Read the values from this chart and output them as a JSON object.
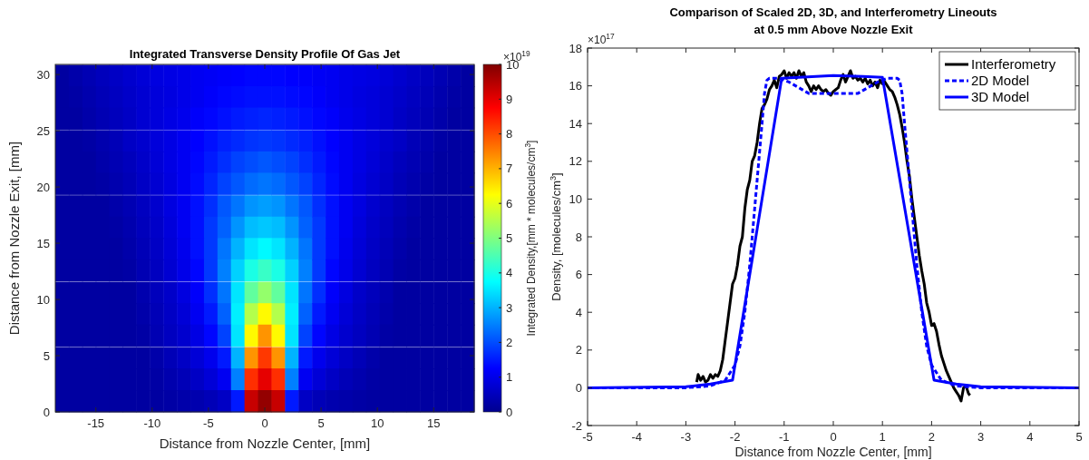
{
  "chart_data": [
    {
      "type": "heatmap",
      "title": "Integrated Transverse Density Profile Of Gas Jet",
      "xlabel": "Distance from Nozzle Center, [mm]",
      "ylabel": "Distance from Nozzle Exit, [mm]",
      "clabel": "Integrated Density,[mm * molecules/cm$^{3}$]",
      "annotations": [
        "×10$^{19}$"
      ],
      "x": [
        -18.0,
        -16.8,
        -15.6,
        -14.4,
        -13.2,
        -12.0,
        -10.8,
        -9.6,
        -8.4,
        -7.2,
        -6.0,
        -4.8,
        -3.6,
        -2.4,
        -1.2,
        0,
        1.2,
        2.4,
        3.6,
        4.8,
        6.0,
        7.2,
        8.4,
        9.6,
        10.8,
        12.0,
        13.2,
        14.4,
        15.6,
        16.8,
        18.0
      ],
      "y": [
        29.9,
        28.0,
        26.1,
        24.1,
        22.2,
        20.3,
        18.3,
        16.4,
        14.5,
        12.6,
        10.6,
        8.7,
        6.8,
        4.8,
        2.9,
        0.97
      ],
      "xlim": [
        -18.6,
        18.6
      ],
      "ylim": [
        0,
        30.9
      ],
      "xticks": [
        -15,
        -10,
        -5,
        0,
        5,
        10,
        15
      ],
      "yticks": [
        0,
        5,
        10,
        15,
        20,
        25,
        30
      ],
      "clim": [
        0,
        10
      ],
      "cticks": [
        0,
        1,
        2,
        3,
        4,
        5,
        6,
        7,
        8,
        9,
        10
      ],
      "cells": [
        [
          0.2,
          0.3,
          0.4,
          0.5,
          0.6,
          0.7,
          0.8,
          0.9,
          0.95,
          1.0,
          1.1,
          1.15,
          1.2,
          1.25,
          1.3,
          1.3,
          1.3,
          1.25,
          1.2,
          1.15,
          1.1,
          1.0,
          0.95,
          0.9,
          0.8,
          0.7,
          0.6,
          0.5,
          0.4,
          0.3,
          0.2
        ],
        [
          0.2,
          0.25,
          0.35,
          0.45,
          0.55,
          0.65,
          0.75,
          0.85,
          0.9,
          1.0,
          1.1,
          1.2,
          1.3,
          1.35,
          1.4,
          1.4,
          1.4,
          1.35,
          1.3,
          1.2,
          1.1,
          1.0,
          0.9,
          0.85,
          0.75,
          0.65,
          0.55,
          0.45,
          0.35,
          0.25,
          0.2
        ],
        [
          0.2,
          0.2,
          0.3,
          0.4,
          0.5,
          0.6,
          0.75,
          0.85,
          0.95,
          1.05,
          1.2,
          1.3,
          1.4,
          1.5,
          1.55,
          1.6,
          1.55,
          1.5,
          1.4,
          1.3,
          1.2,
          1.05,
          0.95,
          0.85,
          0.75,
          0.6,
          0.5,
          0.4,
          0.3,
          0.2,
          0.2
        ],
        [
          0.2,
          0.2,
          0.25,
          0.35,
          0.45,
          0.6,
          0.7,
          0.85,
          0.95,
          1.1,
          1.25,
          1.4,
          1.55,
          1.65,
          1.75,
          1.8,
          1.75,
          1.65,
          1.55,
          1.4,
          1.25,
          1.1,
          0.95,
          0.85,
          0.7,
          0.6,
          0.45,
          0.35,
          0.25,
          0.2,
          0.2
        ],
        [
          0.2,
          0.2,
          0.2,
          0.3,
          0.4,
          0.5,
          0.65,
          0.8,
          0.95,
          1.1,
          1.3,
          1.5,
          1.7,
          1.9,
          2.0,
          2.1,
          2.0,
          1.9,
          1.7,
          1.5,
          1.3,
          1.1,
          0.95,
          0.8,
          0.65,
          0.5,
          0.4,
          0.3,
          0.2,
          0.2,
          0.2
        ],
        [
          0.2,
          0.2,
          0.2,
          0.25,
          0.35,
          0.45,
          0.6,
          0.75,
          0.9,
          1.1,
          1.35,
          1.6,
          1.9,
          2.1,
          2.3,
          2.4,
          2.3,
          2.1,
          1.9,
          1.6,
          1.35,
          1.1,
          0.9,
          0.75,
          0.6,
          0.45,
          0.35,
          0.25,
          0.2,
          0.2,
          0.2
        ],
        [
          0.2,
          0.2,
          0.2,
          0.2,
          0.3,
          0.4,
          0.55,
          0.7,
          0.9,
          1.1,
          1.4,
          1.7,
          2.1,
          2.4,
          2.7,
          2.8,
          2.7,
          2.4,
          2.1,
          1.7,
          1.4,
          1.1,
          0.9,
          0.7,
          0.55,
          0.4,
          0.3,
          0.2,
          0.2,
          0.2,
          0.2
        ],
        [
          0.2,
          0.2,
          0.2,
          0.2,
          0.25,
          0.35,
          0.5,
          0.65,
          0.85,
          1.1,
          1.4,
          1.8,
          2.2,
          2.7,
          3.1,
          3.2,
          3.1,
          2.7,
          2.2,
          1.8,
          1.4,
          1.1,
          0.85,
          0.65,
          0.5,
          0.35,
          0.25,
          0.2,
          0.2,
          0.2,
          0.2
        ],
        [
          0.2,
          0.2,
          0.2,
          0.2,
          0.2,
          0.3,
          0.45,
          0.6,
          0.8,
          1.05,
          1.4,
          1.8,
          2.4,
          3.0,
          3.5,
          3.7,
          3.5,
          3.0,
          2.4,
          1.8,
          1.4,
          1.05,
          0.8,
          0.6,
          0.45,
          0.3,
          0.2,
          0.2,
          0.2,
          0.2,
          0.2
        ],
        [
          0.2,
          0.2,
          0.2,
          0.2,
          0.2,
          0.25,
          0.4,
          0.55,
          0.75,
          1.0,
          1.3,
          1.8,
          2.5,
          3.3,
          4.0,
          4.3,
          4.0,
          3.3,
          2.5,
          1.8,
          1.3,
          1.0,
          0.75,
          0.55,
          0.4,
          0.25,
          0.2,
          0.2,
          0.2,
          0.2,
          0.2
        ],
        [
          0.2,
          0.2,
          0.2,
          0.2,
          0.2,
          0.2,
          0.35,
          0.5,
          0.65,
          0.9,
          1.2,
          1.7,
          2.4,
          3.5,
          4.7,
          5.2,
          4.7,
          3.5,
          2.4,
          1.7,
          1.2,
          0.9,
          0.65,
          0.5,
          0.35,
          0.2,
          0.2,
          0.2,
          0.2,
          0.2,
          0.2
        ],
        [
          0.2,
          0.2,
          0.2,
          0.2,
          0.2,
          0.2,
          0.3,
          0.45,
          0.6,
          0.8,
          1.1,
          1.5,
          2.2,
          3.6,
          5.5,
          6.3,
          5.5,
          3.6,
          2.2,
          1.5,
          1.1,
          0.8,
          0.6,
          0.45,
          0.3,
          0.2,
          0.2,
          0.2,
          0.2,
          0.2,
          0.2
        ],
        [
          0.2,
          0.2,
          0.2,
          0.2,
          0.2,
          0.2,
          0.25,
          0.4,
          0.55,
          0.7,
          0.95,
          1.3,
          1.9,
          3.5,
          6.3,
          7.3,
          6.3,
          3.5,
          1.9,
          1.3,
          0.95,
          0.7,
          0.55,
          0.4,
          0.25,
          0.2,
          0.2,
          0.2,
          0.2,
          0.2,
          0.2
        ],
        [
          0.2,
          0.2,
          0.2,
          0.2,
          0.2,
          0.2,
          0.2,
          0.3,
          0.45,
          0.6,
          0.8,
          1.05,
          1.5,
          3.0,
          7.3,
          8.2,
          7.3,
          3.0,
          1.5,
          1.05,
          0.8,
          0.6,
          0.45,
          0.3,
          0.2,
          0.2,
          0.2,
          0.2,
          0.2,
          0.2,
          0.2
        ],
        [
          0.2,
          0.2,
          0.2,
          0.2,
          0.2,
          0.2,
          0.2,
          0.25,
          0.35,
          0.45,
          0.6,
          0.8,
          1.1,
          2.5,
          8.3,
          9.0,
          8.3,
          2.5,
          1.1,
          0.8,
          0.6,
          0.45,
          0.35,
          0.25,
          0.2,
          0.2,
          0.2,
          0.2,
          0.2,
          0.2,
          0.2
        ],
        [
          0.2,
          0.2,
          0.2,
          0.2,
          0.2,
          0.2,
          0.2,
          0.2,
          0.25,
          0.3,
          0.35,
          0.45,
          0.6,
          1.5,
          9.3,
          9.8,
          9.3,
          1.5,
          0.6,
          0.45,
          0.35,
          0.3,
          0.25,
          0.2,
          0.2,
          0.2,
          0.2,
          0.2,
          0.2,
          0.2,
          0.2
        ]
      ]
    },
    {
      "type": "line",
      "title": "Comparison of Scaled 2D, 3D, and Interferometry Lineouts\nat 0.5 mm Above Nozzle Exit",
      "xlabel": "Distance from Nozzle Center, [mm]",
      "ylabel": "Density, [molecules/cm$^{3}$]",
      "annotations": [
        "×10$^{17}$"
      ],
      "xlim": [
        -5,
        5
      ],
      "ylim": [
        -2,
        18
      ],
      "xticks": [
        -5,
        -4,
        -3,
        -2,
        -1,
        0,
        1,
        2,
        3,
        4,
        5
      ],
      "yticks": [
        -2,
        0,
        2,
        4,
        6,
        8,
        10,
        12,
        14,
        16,
        18
      ],
      "legend": "top right",
      "marker": "none",
      "series": [
        {
          "name": "Interferometry",
          "color": "#000000",
          "line_style": "solid",
          "x": [
            -2.78,
            -2.75,
            -2.7,
            -2.65,
            -2.6,
            -2.55,
            -2.5,
            -2.45,
            -2.4,
            -2.35,
            -2.3,
            -2.25,
            -2.2,
            -2.15,
            -2.1,
            -2.05,
            -2.0,
            -1.95,
            -1.9,
            -1.85,
            -1.8,
            -1.75,
            -1.7,
            -1.65,
            -1.6,
            -1.55,
            -1.5,
            -1.45,
            -1.4,
            -1.35,
            -1.3,
            -1.25,
            -1.2,
            -1.15,
            -1.1,
            -1.05,
            -1.0,
            -0.95,
            -0.9,
            -0.85,
            -0.8,
            -0.75,
            -0.7,
            -0.65,
            -0.6,
            -0.55,
            -0.5,
            -0.45,
            -0.4,
            -0.35,
            -0.3,
            -0.25,
            -0.2,
            -0.15,
            -0.1,
            -0.05,
            0,
            0.05,
            0.1,
            0.15,
            0.2,
            0.25,
            0.3,
            0.35,
            0.4,
            0.45,
            0.5,
            0.55,
            0.6,
            0.65,
            0.7,
            0.75,
            0.8,
            0.85,
            0.9,
            0.95,
            1.0,
            1.05,
            1.1,
            1.15,
            1.2,
            1.25,
            1.3,
            1.35,
            1.4,
            1.45,
            1.5,
            1.55,
            1.6,
            1.65,
            1.7,
            1.75,
            1.8,
            1.85,
            1.9,
            1.95,
            2.0,
            2.05,
            2.1,
            2.15,
            2.2,
            2.25,
            2.3,
            2.35,
            2.4,
            2.45,
            2.5,
            2.55,
            2.6,
            2.65,
            2.7,
            2.75,
            2.78
          ],
          "values": [
            0.3,
            0.7,
            0.4,
            0.6,
            0.3,
            0.4,
            0.7,
            0.5,
            0.7,
            0.6,
            0.9,
            1.5,
            2.5,
            3.5,
            4.5,
            5.5,
            5.8,
            6.5,
            7.5,
            8.0,
            9.5,
            10.5,
            11.0,
            12.0,
            12.3,
            13.0,
            14.0,
            14.8,
            15.0,
            15.3,
            15.8,
            16.0,
            16.3,
            15.9,
            16.5,
            16.6,
            16.8,
            16.4,
            16.7,
            16.5,
            16.7,
            16.4,
            16.8,
            16.5,
            16.7,
            16.2,
            16.0,
            15.7,
            16.0,
            15.8,
            16.0,
            15.8,
            15.7,
            15.8,
            15.6,
            15.5,
            15.7,
            15.8,
            15.9,
            16.3,
            16.6,
            16.2,
            16.5,
            16.8,
            16.4,
            16.5,
            16.3,
            16.4,
            16.2,
            16.4,
            16.1,
            16.3,
            16.0,
            16.2,
            15.9,
            16.3,
            16.1,
            16.2,
            16.0,
            15.8,
            15.7,
            15.4,
            15.0,
            14.5,
            13.8,
            13.0,
            12.0,
            11.2,
            10.0,
            9.0,
            8.0,
            7.0,
            6.2,
            5.5,
            4.5,
            4.0,
            3.3,
            3.4,
            3.0,
            2.3,
            1.7,
            1.3,
            0.9,
            0.6,
            0.3,
            0.0,
            -0.2,
            -0.4,
            -0.7,
            0.0,
            0.1,
            -0.3,
            -0.4
          ]
        },
        {
          "name": "2D Model",
          "color": "#0000ff",
          "line_style": "dashed",
          "x": [
            -5,
            -3,
            -2.5,
            -2.2,
            -2.0,
            -1.9,
            -1.8,
            -1.7,
            -1.6,
            -1.5,
            -1.45,
            -1.4,
            -1.35,
            -1.3,
            -1.1,
            -0.9,
            -0.7,
            -0.5,
            -0.3,
            0,
            0.3,
            0.5,
            0.7,
            0.9,
            1.1,
            1.3,
            1.35,
            1.4,
            1.45,
            1.5,
            1.6,
            1.7,
            1.8,
            1.9,
            2.0,
            2.2,
            2.5,
            3,
            5
          ],
          "values": [
            0,
            0,
            0.1,
            0.4,
            1.2,
            2.2,
            4.0,
            6.5,
            9.5,
            12.5,
            14.0,
            15.6,
            16.3,
            16.4,
            16.4,
            16.2,
            15.9,
            15.6,
            15.6,
            15.6,
            15.6,
            15.6,
            15.9,
            16.2,
            16.4,
            16.4,
            16.3,
            15.6,
            14.0,
            12.5,
            9.5,
            6.5,
            4.0,
            2.2,
            1.2,
            0.4,
            0.1,
            0,
            0
          ]
        },
        {
          "name": "3D Model",
          "color": "#0000ff",
          "line_style": "solid",
          "x": [
            -5,
            -3,
            -2.5,
            -2.05,
            -1.05,
            0,
            0.6,
            1.0,
            2.05,
            2.5,
            3,
            5
          ],
          "values": [
            0,
            0.05,
            0.2,
            0.4,
            16.4,
            16.55,
            16.5,
            16.45,
            0.4,
            0.2,
            0.05,
            0
          ]
        }
      ]
    }
  ]
}
